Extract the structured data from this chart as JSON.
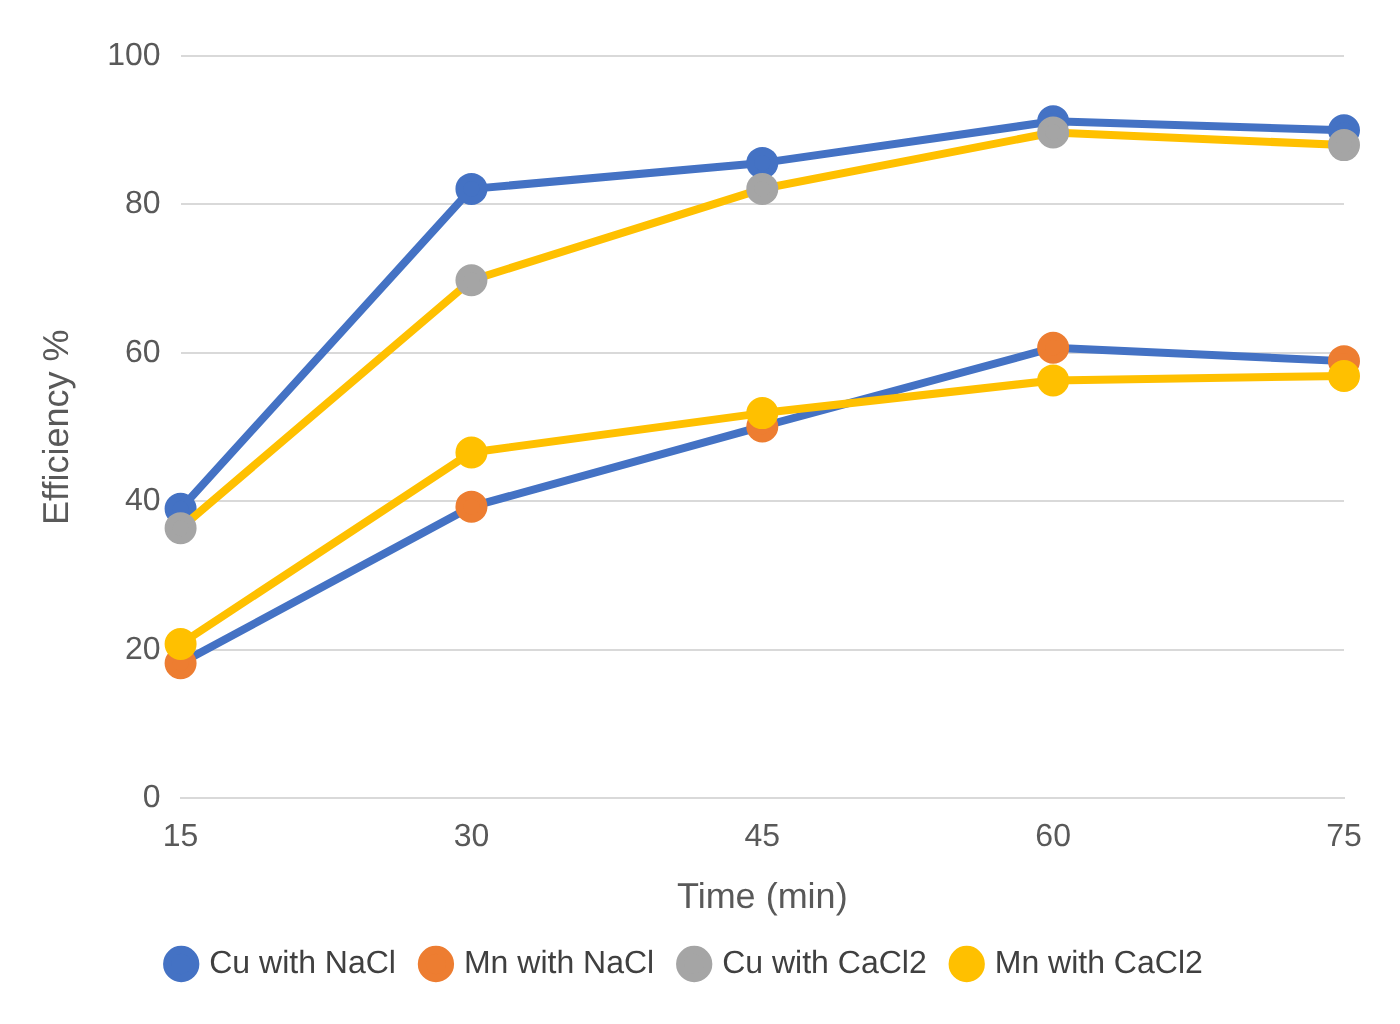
{
  "chart_data": {
    "type": "line",
    "xlabel": "Time (min)",
    "ylabel": "Efficiency %",
    "categories": [
      "15",
      "30",
      "45",
      "60",
      "75"
    ],
    "series": [
      {
        "name": "Cu with NaCl",
        "color": "#4472c4",
        "values": [
          39,
          82.1,
          85.6,
          91.2,
          90
        ]
      },
      {
        "name": "Mn with NaCl",
        "color": "#4472c4",
        "colors": [
          "#ed7d31",
          "#ed7d31",
          "#ed7d31",
          "#ed7d31",
          "#ed7d31"
        ],
        "values": [
          18.2,
          39.3,
          50.1,
          60.7,
          58.9
        ]
      },
      {
        "name": "Cu with CaCl2",
        "color": "#ffc000",
        "colors": [
          "#a5a5a5",
          "#a5a5a5",
          "#a5a5a5",
          "#a5a5a5",
          "#a5a5a5"
        ],
        "values": [
          36.4,
          69.8,
          82.1,
          89.7,
          88
        ]
      },
      {
        "name": "Mn with CaCl2",
        "color": "#ffc000",
        "values": [
          20.8,
          46.6,
          51.9,
          56.3,
          56.9
        ]
      }
    ],
    "ylim": [
      0,
      100
    ],
    "yticks": [
      0,
      20,
      40,
      60,
      80,
      100
    ],
    "grid": "y",
    "legend": "bottom",
    "marker": "circle",
    "line_style": "solid"
  }
}
